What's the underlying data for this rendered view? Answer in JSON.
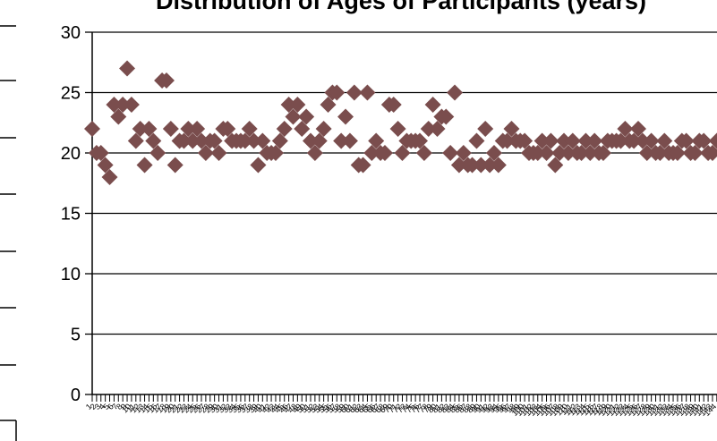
{
  "chart_data": {
    "type": "scatter",
    "title": "Distribution of Ages of Participants (years)",
    "xlabel": "",
    "ylabel": "",
    "ylim": [
      0,
      30
    ],
    "yticks": [
      0,
      5,
      10,
      15,
      20,
      25,
      30
    ],
    "grid": true,
    "marker": "diamond",
    "colors": {
      "marker": "#7a4d4d",
      "gridline": "#000000",
      "axis": "#000000",
      "background": "#ffffff"
    },
    "x": [
      1,
      2,
      3,
      4,
      5,
      6,
      7,
      8,
      9,
      10,
      11,
      12,
      13,
      14,
      15,
      16,
      17,
      18,
      19,
      20,
      21,
      22,
      23,
      24,
      25,
      26,
      27,
      28,
      29,
      30,
      31,
      32,
      33,
      34,
      35,
      36,
      37,
      38,
      39,
      40,
      41,
      42,
      43,
      44,
      45,
      46,
      47,
      48,
      49,
      50,
      51,
      52,
      53,
      54,
      55,
      56,
      57,
      58,
      59,
      60,
      61,
      62,
      63,
      64,
      65,
      66,
      67,
      68,
      69,
      70,
      71,
      72,
      73,
      74,
      75,
      76,
      77,
      78,
      79,
      80,
      81,
      82,
      83,
      84,
      85,
      86,
      87,
      88,
      89,
      90,
      91,
      92,
      93,
      94,
      95,
      96,
      97,
      98,
      99,
      100,
      101,
      102,
      103,
      104,
      105,
      106,
      107,
      108,
      109,
      110,
      111,
      112,
      113,
      114,
      115,
      116,
      117,
      118,
      119,
      120,
      121,
      122,
      123,
      124,
      125,
      126,
      127,
      128,
      129,
      130,
      131,
      132,
      133,
      134,
      135,
      136,
      137,
      138,
      139,
      140,
      141,
      142,
      143,
      144
    ],
    "y": [
      22,
      20,
      20,
      19,
      18,
      24,
      23,
      24,
      27,
      24,
      21,
      22,
      19,
      22,
      21,
      20,
      26,
      26,
      22,
      19,
      21,
      21,
      22,
      21,
      22,
      21,
      20,
      21,
      21,
      20,
      22,
      22,
      21,
      21,
      21,
      21,
      22,
      21,
      19,
      21,
      20,
      20,
      20,
      21,
      22,
      24,
      23,
      24,
      22,
      23,
      21,
      20,
      21,
      22,
      24,
      25,
      25,
      21,
      23,
      21,
      25,
      19,
      19,
      25,
      20,
      21,
      20,
      20,
      24,
      24,
      22,
      20,
      21,
      21,
      21,
      21,
      20,
      22,
      24,
      22,
      23,
      23,
      20,
      25,
      19,
      20,
      19,
      19,
      21,
      19,
      22,
      19,
      20,
      19,
      21,
      21,
      22,
      21,
      21,
      21,
      20,
      20,
      20,
      21,
      20,
      21,
      19,
      20,
      21,
      20,
      21,
      20,
      20,
      21,
      20,
      21,
      20,
      20,
      21,
      21,
      21,
      21,
      22,
      21,
      21,
      22,
      21,
      20,
      21,
      20,
      20,
      21,
      20,
      20,
      20,
      21,
      21,
      20,
      20,
      21,
      21,
      20,
      20,
      21
    ]
  }
}
